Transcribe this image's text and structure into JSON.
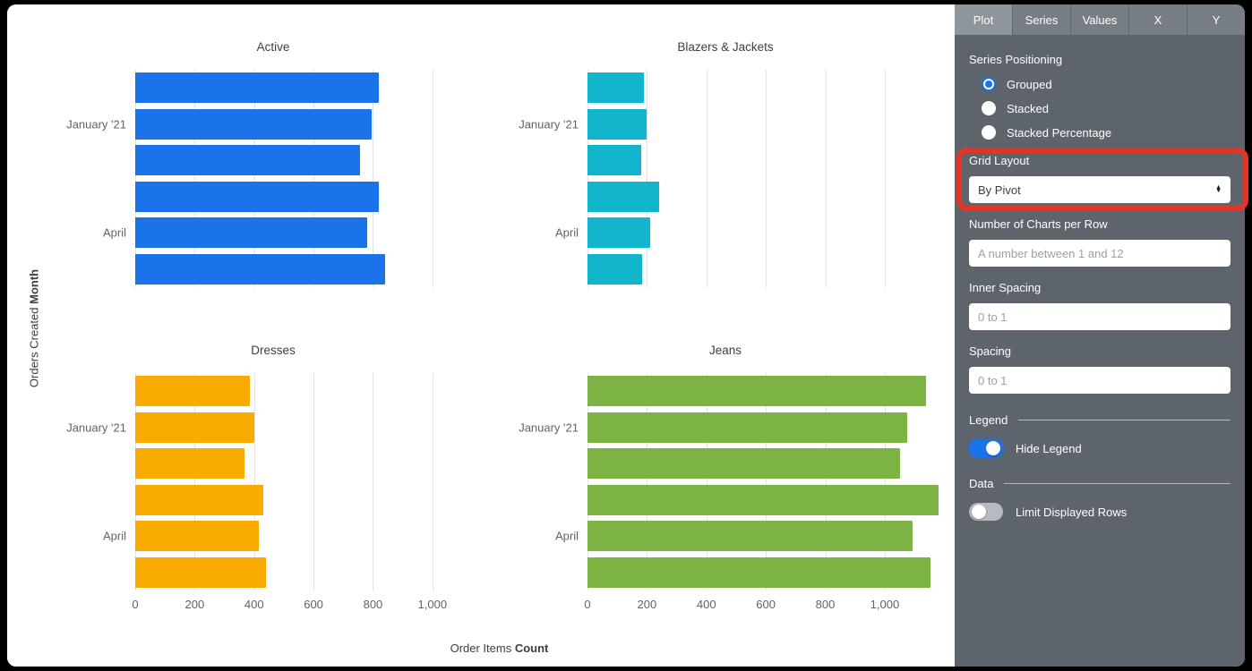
{
  "panel": {
    "tabs": [
      {
        "label": "Plot",
        "active": true
      },
      {
        "label": "Series",
        "active": false
      },
      {
        "label": "Values",
        "active": false
      },
      {
        "label": "X",
        "active": false
      },
      {
        "label": "Y",
        "active": false
      }
    ],
    "series_positioning": {
      "label": "Series Positioning",
      "options": [
        {
          "label": "Grouped",
          "selected": true
        },
        {
          "label": "Stacked",
          "selected": false
        },
        {
          "label": "Stacked Percentage",
          "selected": false
        }
      ]
    },
    "grid_layout": {
      "label": "Grid Layout",
      "value": "By Pivot"
    },
    "charts_per_row": {
      "label": "Number of Charts per Row",
      "value": "",
      "placeholder": "A number between 1 and 12"
    },
    "inner_spacing": {
      "label": "Inner Spacing",
      "value": "",
      "placeholder": "0 to 1"
    },
    "spacing": {
      "label": "Spacing",
      "value": "",
      "placeholder": "0 to 1"
    },
    "legend_section": {
      "label": "Legend",
      "toggle_label": "Hide Legend",
      "on": true
    },
    "data_section": {
      "label": "Data",
      "toggle_label": "Limit Displayed Rows",
      "on": false
    }
  },
  "annotation": {
    "highlight_color": "#e43426",
    "highlighted_field": "Grid Layout"
  },
  "chart_data": {
    "type": "bar",
    "orientation": "horizontal",
    "layout": "small-multiples 2x2, grid layout by pivot",
    "grid": true,
    "legend": "hidden",
    "xlabel": {
      "normal": "Order Items",
      "bold": "Count"
    },
    "ylabel": {
      "normal": "Orders Created",
      "bold": "Month"
    },
    "row_count": 6,
    "row_labels": [
      {
        "index": 1,
        "label": "January '21"
      },
      {
        "index": 4,
        "label": "April"
      }
    ],
    "x_tick_values": [
      0,
      200,
      400,
      600,
      800,
      1000
    ],
    "x_tick_labels": [
      "0",
      "200",
      "400",
      "600",
      "800",
      "1,000"
    ],
    "charts": [
      {
        "title": "Active",
        "color": "#1a73e8",
        "xmax": 1100,
        "values": [
          820,
          795,
          755,
          820,
          780,
          840
        ]
      },
      {
        "title": "Blazers & Jackets",
        "color": "#12b5cb",
        "xmax": 1190,
        "values": [
          190,
          200,
          180,
          242,
          212,
          185
        ]
      },
      {
        "title": "Dresses",
        "color": "#f9ab00",
        "xmax": 1100,
        "values": [
          385,
          400,
          368,
          430,
          415,
          440
        ]
      },
      {
        "title": "Jeans",
        "color": "#7cb342",
        "xmax": 1190,
        "values": [
          1140,
          1075,
          1050,
          1180,
          1095,
          1155
        ]
      }
    ]
  }
}
